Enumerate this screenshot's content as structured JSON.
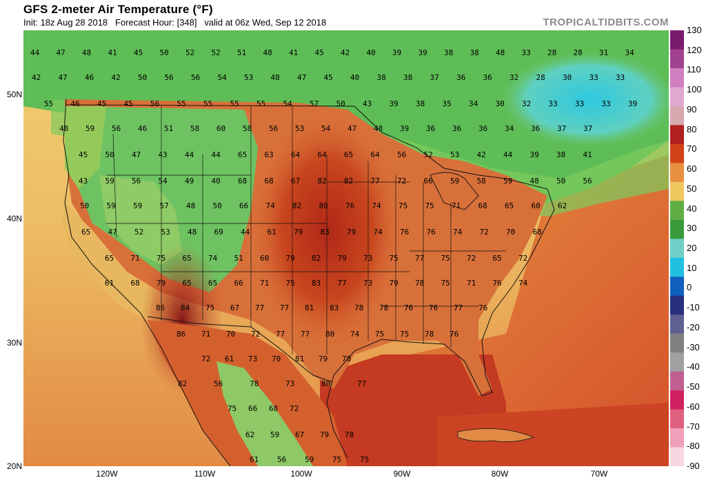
{
  "header": {
    "title": "GFS 2-meter Air Temperature (°F)",
    "init": "Init: 18z Aug 28 2018",
    "forecast_hour": "Forecast Hour: [348]",
    "valid": "valid at 06z Wed, Sep 12 2018",
    "site": "TROPICALTIDBITS.COM"
  },
  "latitude_labels": [
    "50N",
    "40N",
    "30N",
    "20N"
  ],
  "longitude_labels": [
    "120W",
    "110W",
    "100W",
    "90W",
    "80W",
    "70W"
  ],
  "colorbar": {
    "labels": [
      "130",
      "120",
      "110",
      "100",
      "90",
      "80",
      "70",
      "60",
      "50",
      "40",
      "30",
      "20",
      "10",
      "0",
      "-10",
      "-20",
      "-30",
      "-40",
      "-50",
      "-60",
      "-70",
      "-80",
      "-90"
    ],
    "colors": [
      "#7a1a6e",
      "#a0428e",
      "#d080c0",
      "#e0a8d0",
      "#d8a8b0",
      "#b02020",
      "#d04418",
      "#e89040",
      "#f0c860",
      "#5fae45",
      "#3a9a3a",
      "#6fd0c8",
      "#20c0e0",
      "#1060c0",
      "#283080",
      "#606090",
      "#808080",
      "#a0a0a0",
      "#c06090",
      "#d02060",
      "#e06080",
      "#f0a0b8",
      "#f8d8e0"
    ]
  },
  "map": {
    "colors": {
      "ocean_pacific": "#e9b058",
      "ocean_gulf": "#c83a24",
      "ocean_atlantic": "#de7a3c",
      "canada_north": "#5fbf5a",
      "canada_cold": "#45c4c8",
      "great_plains_hot": "#c2401e",
      "southeast": "#d86a34",
      "mountains": "#7cc56a",
      "mexico": "#d05a2e",
      "desert_sw": "#a8261c",
      "borders": "#111111"
    }
  },
  "values": [
    {
      "t": "44"
    },
    {
      "t": "47"
    },
    {
      "t": "48"
    },
    {
      "t": "41"
    },
    {
      "t": "45"
    },
    {
      "t": "50"
    },
    {
      "t": "52"
    },
    {
      "t": "52"
    },
    {
      "t": "51"
    },
    {
      "t": "48"
    },
    {
      "t": "41"
    },
    {
      "t": "45"
    },
    {
      "t": "42"
    },
    {
      "t": "40"
    },
    {
      "t": "39"
    },
    {
      "t": "39"
    },
    {
      "t": "38"
    },
    {
      "t": "38"
    },
    {
      "t": "48"
    },
    {
      "t": "33"
    },
    {
      "t": "28"
    },
    {
      "t": "28"
    },
    {
      "t": "31"
    },
    {
      "t": "34"
    },
    {
      "t": "42"
    },
    {
      "t": "47"
    },
    {
      "t": "46"
    },
    {
      "t": "42"
    },
    {
      "t": "50"
    },
    {
      "t": "56"
    },
    {
      "t": "56"
    },
    {
      "t": "54"
    },
    {
      "t": "53"
    },
    {
      "t": "48"
    },
    {
      "t": "47"
    },
    {
      "t": "45"
    },
    {
      "t": "40"
    },
    {
      "t": "38"
    },
    {
      "t": "38"
    },
    {
      "t": "37"
    },
    {
      "t": "36"
    },
    {
      "t": "36"
    },
    {
      "t": "32"
    },
    {
      "t": "28"
    },
    {
      "t": "30"
    },
    {
      "t": "33"
    },
    {
      "t": "33"
    },
    {
      "t": "55"
    },
    {
      "t": "46"
    },
    {
      "t": "45"
    },
    {
      "t": "45"
    },
    {
      "t": "56"
    },
    {
      "t": "55"
    },
    {
      "t": "55"
    },
    {
      "t": "55"
    },
    {
      "t": "55"
    },
    {
      "t": "54"
    },
    {
      "t": "57"
    },
    {
      "t": "50"
    },
    {
      "t": "43"
    },
    {
      "t": "39"
    },
    {
      "t": "38"
    },
    {
      "t": "35"
    },
    {
      "t": "34"
    },
    {
      "t": "30"
    },
    {
      "t": "32"
    },
    {
      "t": "33"
    },
    {
      "t": "33"
    },
    {
      "t": "33"
    },
    {
      "t": "39"
    },
    {
      "t": "48"
    },
    {
      "t": "59"
    },
    {
      "t": "56"
    },
    {
      "t": "46"
    },
    {
      "t": "51"
    },
    {
      "t": "58"
    },
    {
      "t": "60"
    },
    {
      "t": "58"
    },
    {
      "t": "56"
    },
    {
      "t": "53"
    },
    {
      "t": "54"
    },
    {
      "t": "47"
    },
    {
      "t": "48"
    },
    {
      "t": "39"
    },
    {
      "t": "36"
    },
    {
      "t": "36"
    },
    {
      "t": "36"
    },
    {
      "t": "34"
    },
    {
      "t": "36"
    },
    {
      "t": "37"
    },
    {
      "t": "37"
    },
    {
      "t": "45"
    },
    {
      "t": "50"
    },
    {
      "t": "47"
    },
    {
      "t": "43"
    },
    {
      "t": "44"
    },
    {
      "t": "44"
    },
    {
      "t": "65"
    },
    {
      "t": "63"
    },
    {
      "t": "64"
    },
    {
      "t": "64"
    },
    {
      "t": "65"
    },
    {
      "t": "64"
    },
    {
      "t": "56"
    },
    {
      "t": "52"
    },
    {
      "t": "53"
    },
    {
      "t": "42"
    },
    {
      "t": "44"
    },
    {
      "t": "39"
    },
    {
      "t": "38"
    },
    {
      "t": "41"
    },
    {
      "t": "43"
    },
    {
      "t": "59"
    },
    {
      "t": "56"
    },
    {
      "t": "54"
    },
    {
      "t": "49"
    },
    {
      "t": "40"
    },
    {
      "t": "68"
    },
    {
      "t": "68"
    },
    {
      "t": "67"
    },
    {
      "t": "82"
    },
    {
      "t": "82"
    },
    {
      "t": "77"
    },
    {
      "t": "72"
    },
    {
      "t": "66"
    },
    {
      "t": "59"
    },
    {
      "t": "58"
    },
    {
      "t": "59"
    },
    {
      "t": "48"
    },
    {
      "t": "50"
    },
    {
      "t": "56"
    },
    {
      "t": "50"
    },
    {
      "t": "59"
    },
    {
      "t": "59"
    },
    {
      "t": "57"
    },
    {
      "t": "48"
    },
    {
      "t": "50"
    },
    {
      "t": "66"
    },
    {
      "t": "74"
    },
    {
      "t": "82"
    },
    {
      "t": "80"
    },
    {
      "t": "76"
    },
    {
      "t": "74"
    },
    {
      "t": "75"
    },
    {
      "t": "75"
    },
    {
      "t": "71"
    },
    {
      "t": "68"
    },
    {
      "t": "65"
    },
    {
      "t": "60"
    },
    {
      "t": "62"
    },
    {
      "t": "65"
    },
    {
      "t": "47"
    },
    {
      "t": "52"
    },
    {
      "t": "53"
    },
    {
      "t": "48"
    },
    {
      "t": "69"
    },
    {
      "t": "44"
    },
    {
      "t": "61"
    },
    {
      "t": "79"
    },
    {
      "t": "83"
    },
    {
      "t": "79"
    },
    {
      "t": "74"
    },
    {
      "t": "76"
    },
    {
      "t": "76"
    },
    {
      "t": "74"
    },
    {
      "t": "72"
    },
    {
      "t": "70"
    },
    {
      "t": "68"
    },
    {
      "t": "65"
    },
    {
      "t": "71"
    },
    {
      "t": "75"
    },
    {
      "t": "65"
    },
    {
      "t": "74"
    },
    {
      "t": "51"
    },
    {
      "t": "60"
    },
    {
      "t": "79"
    },
    {
      "t": "82"
    },
    {
      "t": "79"
    },
    {
      "t": "73"
    },
    {
      "t": "75"
    },
    {
      "t": "77"
    },
    {
      "t": "75"
    },
    {
      "t": "72"
    },
    {
      "t": "65"
    },
    {
      "t": "72"
    },
    {
      "t": "61"
    },
    {
      "t": "68"
    },
    {
      "t": "79"
    },
    {
      "t": "65"
    },
    {
      "t": "65"
    },
    {
      "t": "66"
    },
    {
      "t": "71"
    },
    {
      "t": "75"
    },
    {
      "t": "83"
    },
    {
      "t": "77"
    },
    {
      "t": "73"
    },
    {
      "t": "79"
    },
    {
      "t": "78"
    },
    {
      "t": "75"
    },
    {
      "t": "71"
    },
    {
      "t": "76"
    },
    {
      "t": "74"
    },
    {
      "t": "86"
    },
    {
      "t": "84"
    },
    {
      "t": "75"
    },
    {
      "t": "67"
    },
    {
      "t": "77"
    },
    {
      "t": "77"
    },
    {
      "t": "81"
    },
    {
      "t": "83"
    },
    {
      "t": "78"
    },
    {
      "t": "78"
    },
    {
      "t": "76"
    },
    {
      "t": "76"
    },
    {
      "t": "77"
    },
    {
      "t": "76"
    },
    {
      "t": "86"
    },
    {
      "t": "71"
    },
    {
      "t": "70"
    },
    {
      "t": "72"
    },
    {
      "t": "77"
    },
    {
      "t": "77"
    },
    {
      "t": "80"
    },
    {
      "t": "74"
    },
    {
      "t": "75"
    },
    {
      "t": "75"
    },
    {
      "t": "78"
    },
    {
      "t": "76"
    },
    {
      "t": "72"
    },
    {
      "t": "61"
    },
    {
      "t": "73"
    },
    {
      "t": "70"
    },
    {
      "t": "81"
    },
    {
      "t": "79"
    },
    {
      "t": "78"
    },
    {
      "t": "82"
    },
    {
      "t": "56"
    },
    {
      "t": "78"
    },
    {
      "t": "73"
    },
    {
      "t": "80"
    },
    {
      "t": "77"
    },
    {
      "t": "75"
    },
    {
      "t": "66"
    },
    {
      "t": "68"
    },
    {
      "t": "72"
    },
    {
      "t": "62"
    },
    {
      "t": "59"
    },
    {
      "t": "67"
    },
    {
      "t": "79"
    },
    {
      "t": "78"
    },
    {
      "t": "61"
    },
    {
      "t": "56"
    },
    {
      "t": "59"
    },
    {
      "t": "75"
    },
    {
      "t": "75"
    }
  ]
}
